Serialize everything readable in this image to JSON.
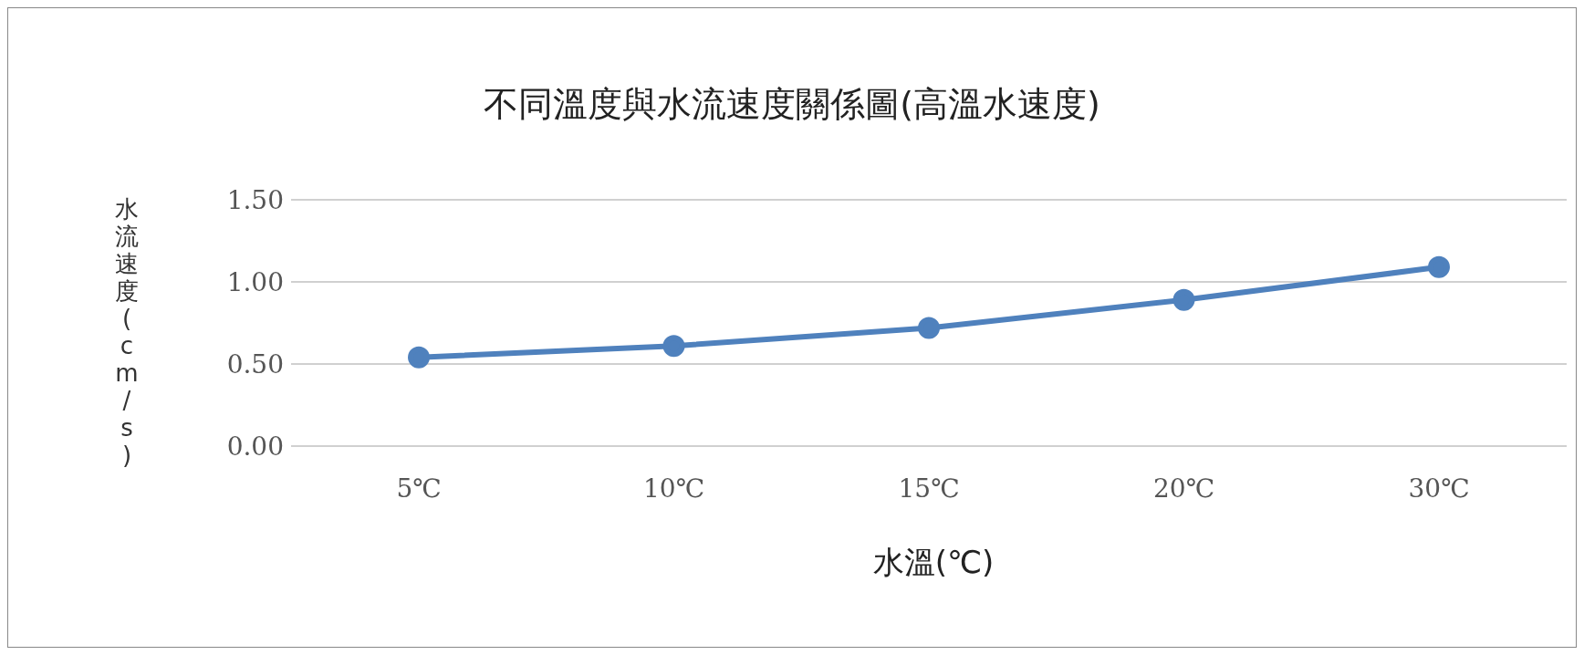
{
  "chart_data": {
    "type": "line",
    "title": "不同溫度與水流速度關係圖(高溫水速度)",
    "xlabel": "水溫(℃)",
    "ylabel": "水流速度(cm/s)",
    "categories": [
      "5℃",
      "10℃",
      "15℃",
      "20℃",
      "30℃"
    ],
    "series": [
      {
        "color": "#4f81bd",
        "values": [
          0.54,
          0.61,
          0.72,
          0.89,
          1.09
        ]
      }
    ],
    "ylim": [
      0,
      1.5
    ],
    "yticks": [
      {
        "value": 0,
        "label": "0.00"
      },
      {
        "value": 0.5,
        "label": "0.50"
      },
      {
        "value": 1,
        "label": "1.00"
      },
      {
        "value": 1.5,
        "label": "1.50"
      }
    ],
    "grid": "y",
    "legend": false,
    "marker": "circle",
    "line_style": "solid"
  }
}
